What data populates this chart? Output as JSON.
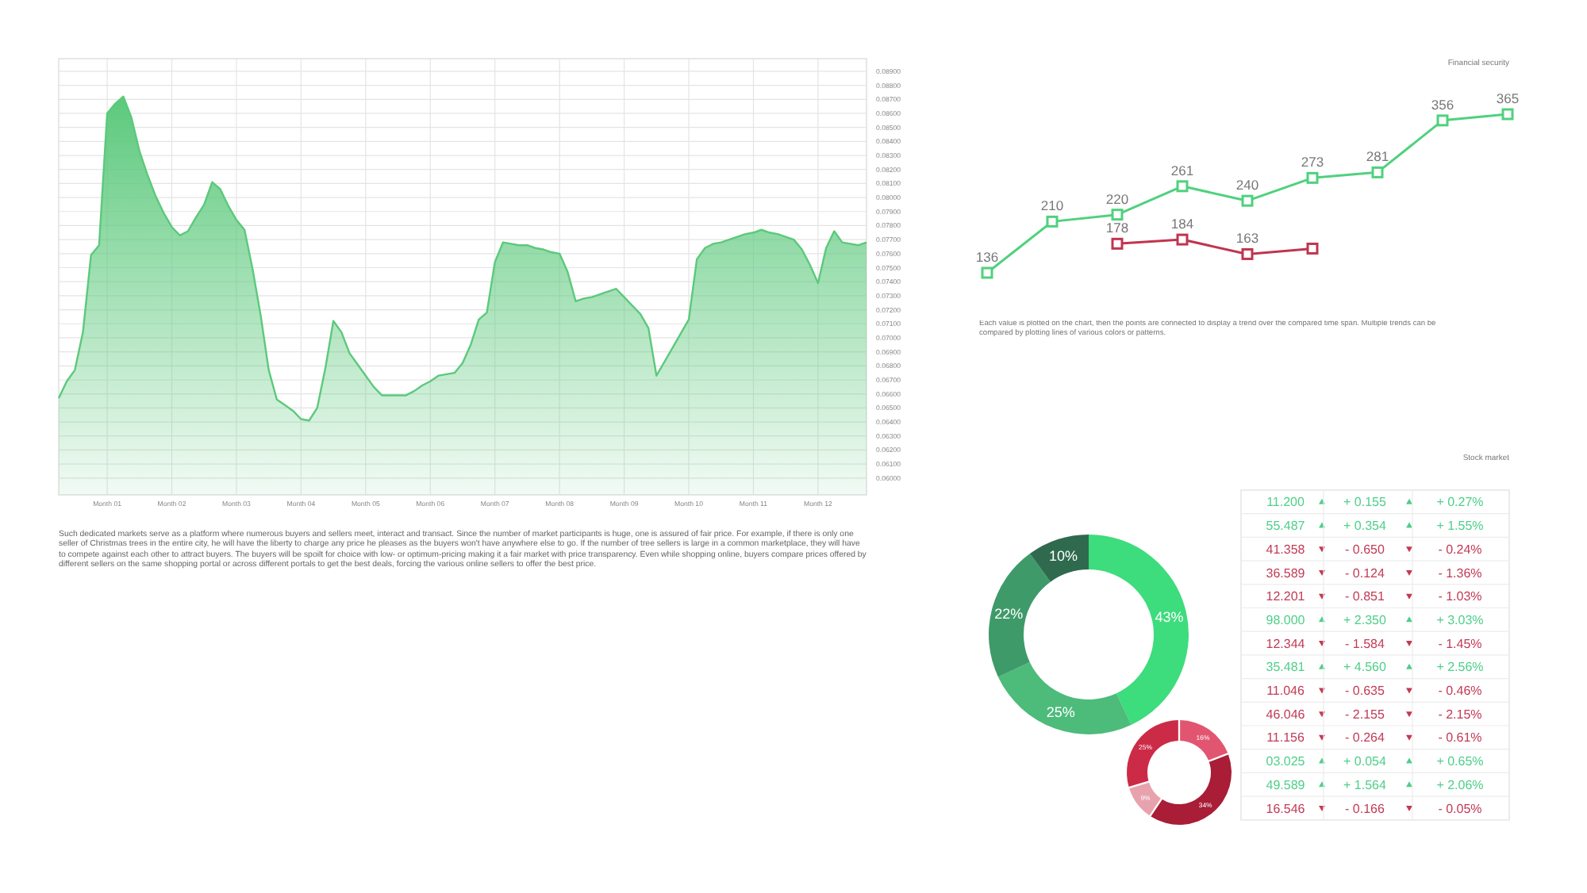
{
  "chart_data": [
    {
      "type": "area",
      "color": "#5cc97c",
      "grid": true,
      "categories": [
        null,
        null,
        null,
        null,
        null,
        null,
        "Month 01",
        null,
        null,
        null,
        null,
        null,
        null,
        null,
        "Month 02",
        null,
        null,
        null,
        null,
        null,
        null,
        null,
        "Month 03",
        null,
        null,
        null,
        null,
        null,
        null,
        null,
        "Month 04",
        null,
        null,
        null,
        null,
        null,
        null,
        null,
        "Month 05",
        null,
        null,
        null,
        null,
        null,
        null,
        null,
        "Month 06",
        null,
        null,
        null,
        null,
        null,
        null,
        null,
        "Month 07",
        null,
        null,
        null,
        null,
        null,
        null,
        null,
        "Month 08",
        null,
        null,
        null,
        null,
        null,
        null,
        null,
        "Month 09",
        null,
        null,
        null,
        null,
        null,
        null,
        null,
        "Month 10",
        null,
        null,
        null,
        null,
        null,
        null,
        null,
        "Month 11",
        null,
        null,
        null,
        null,
        null,
        null,
        null,
        "Month 12",
        null,
        null,
        null,
        null,
        null,
        null
      ],
      "values": [
        0.0657,
        0.0669,
        0.0677,
        0.0704,
        0.0759,
        0.0766,
        0.086,
        0.0867,
        0.0872,
        0.0857,
        0.0833,
        0.0816,
        0.0801,
        0.0789,
        0.0779,
        0.0773,
        0.0776,
        0.0786,
        0.0795,
        0.0811,
        0.0806,
        0.0794,
        0.0784,
        0.0777,
        0.0749,
        0.0716,
        0.0677,
        0.0656,
        0.0652,
        0.0648,
        0.0642,
        0.0641,
        0.065,
        0.0678,
        0.0712,
        0.0704,
        0.0689,
        0.0681,
        0.0673,
        0.0665,
        0.0659,
        0.0659,
        0.0659,
        0.0659,
        0.0662,
        0.0666,
        0.0669,
        0.0673,
        0.0674,
        0.0675,
        0.0682,
        0.0695,
        0.0713,
        0.0718,
        0.0754,
        0.0768,
        0.0767,
        0.0766,
        0.0766,
        0.0764,
        0.0763,
        0.0761,
        0.076,
        0.0747,
        0.0726,
        0.0728,
        0.0729,
        0.0731,
        0.0733,
        0.0735,
        0.0729,
        0.0723,
        0.0717,
        0.0707,
        0.0673,
        0.0683,
        0.0693,
        0.0703,
        0.0713,
        0.0756,
        0.0764,
        0.0767,
        0.0768,
        0.077,
        0.0772,
        0.0774,
        0.0775,
        0.0777,
        0.0775,
        0.0774,
        0.0772,
        0.077,
        0.0763,
        0.0752,
        0.0739,
        0.0764,
        0.0776,
        0.0768,
        0.0767,
        0.0766,
        0.0768
      ],
      "ylim": [
        0.0588,
        0.0899
      ],
      "yticks": [
        {
          "value": 0.06,
          "label": "0.06000"
        },
        {
          "value": 0.061,
          "label": "0.06100"
        },
        {
          "value": 0.062,
          "label": "0.06200"
        },
        {
          "value": 0.063,
          "label": "0.06300"
        },
        {
          "value": 0.064,
          "label": "0.06400"
        },
        {
          "value": 0.065,
          "label": "0.06500"
        },
        {
          "value": 0.066,
          "label": "0.06600"
        },
        {
          "value": 0.067,
          "label": "0.06700"
        },
        {
          "value": 0.068,
          "label": "0.06800"
        },
        {
          "value": 0.069,
          "label": "0.06900"
        },
        {
          "value": 0.07,
          "label": "0.07000"
        },
        {
          "value": 0.071,
          "label": "0.07100"
        },
        {
          "value": 0.072,
          "label": "0.07200"
        },
        {
          "value": 0.073,
          "label": "0.07300"
        },
        {
          "value": 0.074,
          "label": "0.07400"
        },
        {
          "value": 0.075,
          "label": "0.07500"
        },
        {
          "value": 0.076,
          "label": "0.07600"
        },
        {
          "value": 0.077,
          "label": "0.07700"
        },
        {
          "value": 0.078,
          "label": "0.07800"
        },
        {
          "value": 0.079,
          "label": "0.07900"
        },
        {
          "value": 0.08,
          "label": "0.08000"
        },
        {
          "value": 0.081,
          "label": "0.08100"
        },
        {
          "value": 0.082,
          "label": "0.08200"
        },
        {
          "value": 0.083,
          "label": "0.08300"
        },
        {
          "value": 0.084,
          "label": "0.08400"
        },
        {
          "value": 0.085,
          "label": "0.08500"
        },
        {
          "value": 0.086,
          "label": "0.08600"
        },
        {
          "value": 0.087,
          "label": "0.08700"
        },
        {
          "value": 0.088,
          "label": "0.08800"
        },
        {
          "value": 0.089,
          "label": "0.08900"
        }
      ],
      "annotations": [
        "Such dedicated markets serve as a platform where numerous buyers and sellers meet, interact and transact. Since the number of market participants is huge, one is assured of fair price. For example, if there is only one seller of Christmas trees in the entire city, he will have the liberty to charge any price he pleases as the buyers won't have anywhere else to go. If the number of tree sellers is large in a common marketplace, they will have to compete against each other to attract buyers. The buyers will be spoilt for choice with low- or optimum-pricing making it a fair market with price transparency. Even while shopping online, buyers compare prices offered by different sellers on the same shopping portal or across different portals to get the best deals, forcing the various online sellers to offer the best price."
      ]
    },
    {
      "type": "line",
      "title": "Financial security",
      "marker": "square",
      "categories": [
        null,
        null,
        null,
        null,
        null,
        null,
        null,
        null,
        null
      ],
      "series": [
        {
          "color": "#4fd17e",
          "values": [
            136,
            210,
            220,
            261,
            240,
            273,
            281,
            356,
            365
          ],
          "value_labels": [
            "136",
            "210",
            "220",
            "261",
            "240",
            "273",
            "281",
            "356",
            "365"
          ]
        },
        {
          "color": "#c0354f",
          "values": [
            null,
            null,
            178,
            184,
            163,
            171,
            null,
            null,
            null
          ],
          "value_labels": [
            null,
            null,
            "178",
            "184",
            "163",
            null,
            null,
            null,
            null
          ]
        }
      ],
      "annotations": [
        "Each value is plotted on the chart, then the points are connected to display a trend over the compared time span. Multiple trends can be compared by plotting lines of various colors or patterns."
      ]
    },
    {
      "type": "donut",
      "categories": [
        null,
        null,
        null,
        null
      ],
      "values": [
        43,
        25,
        22,
        10
      ],
      "colors": [
        "#3ddc7c",
        "#4dbb7a",
        "#3f9a6a",
        "#2f6a4e"
      ],
      "value_labels": [
        "43%",
        "25%",
        "22%",
        "10%"
      ]
    },
    {
      "type": "donut",
      "categories": [
        null,
        null,
        null,
        null
      ],
      "values": [
        16,
        34,
        9,
        25
      ],
      "colors": [
        "#e25570",
        "#a91d36",
        "#e8a2ae",
        "#cc2b47"
      ],
      "value_labels": [
        "16%",
        "34%",
        "9%",
        "25%"
      ]
    },
    {
      "type": "other",
      "title": "Stock market",
      "colors": [
        "#4fcf8a",
        "#4fcf8a",
        "#c23a55",
        "#c23a55",
        "#c23a55",
        "#4fcf8a",
        "#c23a55",
        "#4fcf8a",
        "#c23a55",
        "#c23a55",
        "#c23a55",
        "#4fcf8a",
        "#4fcf8a",
        "#c23a55"
      ],
      "values": [
        0.27,
        1.55,
        -0.24,
        -1.36,
        -1.03,
        3.03,
        -1.45,
        2.56,
        -0.46,
        -2.15,
        -0.61,
        0.65,
        2.06,
        -0.05
      ],
      "value_labels": [
        "+ 0.27%",
        "+ 1.55%",
        "- 0.24%",
        "- 1.36%",
        "- 1.03%",
        "+ 3.03%",
        "- 1.45%",
        "+ 2.56%",
        "- 0.46%",
        "- 2.15%",
        "- 0.61%",
        "+ 0.65%",
        "+ 2.06%",
        "- 0.05%"
      ],
      "cell_labels": [
        [
          "11.200",
          "+ 0.155"
        ],
        [
          "55.487",
          "+ 0.354"
        ],
        [
          "41.358",
          "- 0.650"
        ],
        [
          "36.589",
          "- 0.124"
        ],
        [
          "12.201",
          "- 0.851"
        ],
        [
          "98.000",
          "+ 2.350"
        ],
        [
          "12.344",
          "- 1.584"
        ],
        [
          "35.481",
          "+ 4.560"
        ],
        [
          "11.046",
          "- 0.635"
        ],
        [
          "46.046",
          "- 2.155"
        ],
        [
          "11.156",
          "- 0.264"
        ],
        [
          "03.025",
          "+ 0.054"
        ],
        [
          "49.589",
          "+ 1.564"
        ],
        [
          "16.546",
          "- 0.166"
        ]
      ]
    }
  ]
}
